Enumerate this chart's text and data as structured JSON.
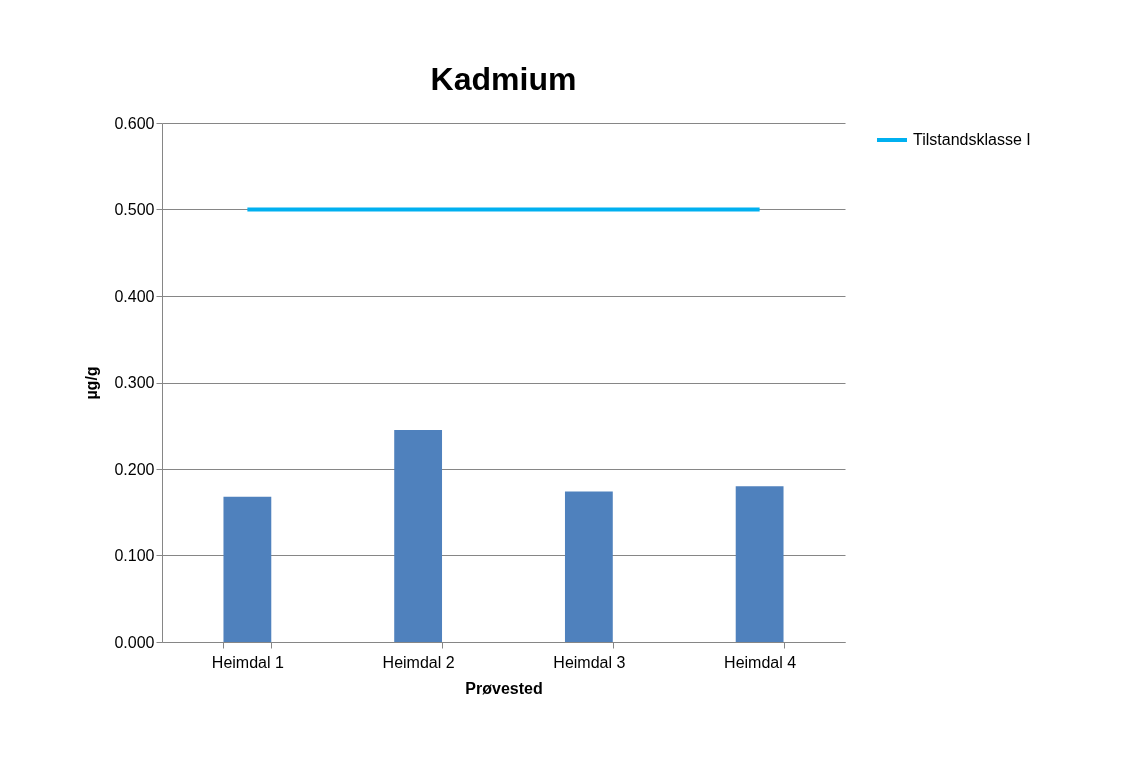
{
  "chart_data": {
    "type": "bar",
    "title": "Kadmium",
    "xlabel": "Prøvested",
    "ylabel": "µg/g",
    "categories": [
      "Heimdal 1",
      "Heimdal 2",
      "Heimdal 3",
      "Heimdal 4"
    ],
    "series": [
      {
        "color": "#4f81bd",
        "values": [
          0.168,
          0.245,
          0.174,
          0.18
        ]
      },
      {
        "type": "line",
        "name": "Tilstandsklasse I",
        "color": "#00b0f0",
        "values": [
          0.5,
          0.5,
          0.5,
          0.5
        ]
      }
    ],
    "ylim": [
      0,
      0.6
    ],
    "yticks": [
      {
        "value": 0,
        "label": "0.000"
      },
      {
        "value": 0.1,
        "label": "0.100"
      },
      {
        "value": 0.2,
        "label": "0.200"
      },
      {
        "value": 0.3,
        "label": "0.300"
      },
      {
        "value": 0.4,
        "label": "0.400"
      },
      {
        "value": 0.5,
        "label": "0.500"
      },
      {
        "value": 0.6,
        "label": "0.600"
      }
    ],
    "grid": "y",
    "legend": "right",
    "marker": "none"
  }
}
